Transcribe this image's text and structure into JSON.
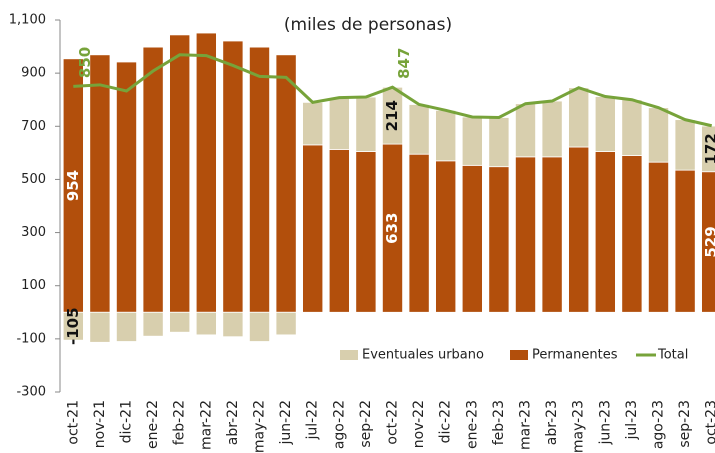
{
  "chart_data": {
    "type": "stacked-bar-line",
    "subtitle": "(miles de personas)",
    "categories": [
      "oct-21",
      "nov-21",
      "dic-21",
      "ene-22",
      "feb-22",
      "mar-22",
      "abr-22",
      "may-22",
      "jun-22",
      "jul-22",
      "ago-22",
      "sep-22",
      "oct-22",
      "nov-22",
      "dic-22",
      "ene-23",
      "feb-23",
      "mar-23",
      "abr-23",
      "may-23",
      "jun-23",
      "jul-23",
      "ago-23",
      "sep-23",
      "oct-23"
    ],
    "series": [
      {
        "name": "Eventuales urbano",
        "color": "#d8cfae",
        "kind": "bar",
        "labeled": [
          0,
          12,
          24
        ],
        "values": [
          -105,
          -113,
          -110,
          -90,
          -75,
          -85,
          -92,
          -110,
          -85,
          160,
          195,
          205,
          214,
          187,
          190,
          182,
          185,
          200,
          210,
          223,
          207,
          210,
          205,
          190,
          172
        ]
      },
      {
        "name": "Permanentes",
        "color": "#b24f0c",
        "kind": "bar",
        "labeled": [
          0,
          12,
          24
        ],
        "values": [
          954,
          969,
          942,
          998,
          1044,
          1051,
          1021,
          998,
          969,
          630,
          613,
          605,
          633,
          595,
          570,
          553,
          548,
          585,
          585,
          622,
          605,
          590,
          565,
          535,
          529
        ]
      },
      {
        "name": "Total",
        "color": "#77a33a",
        "kind": "line",
        "labeled": [
          0,
          12,
          24
        ],
        "values": [
          850,
          856,
          833,
          908,
          969,
          966,
          929,
          888,
          884,
          790,
          808,
          810,
          847,
          782,
          760,
          735,
          733,
          785,
          795,
          845,
          812,
          800,
          770,
          725,
          702
        ]
      }
    ],
    "ylim": [
      -300,
      1100
    ],
    "yticks": [
      -300,
      -100,
      100,
      300,
      500,
      700,
      900,
      {
        "value": 1100,
        "label": "1,100"
      }
    ],
    "legend": "bottom-right"
  }
}
